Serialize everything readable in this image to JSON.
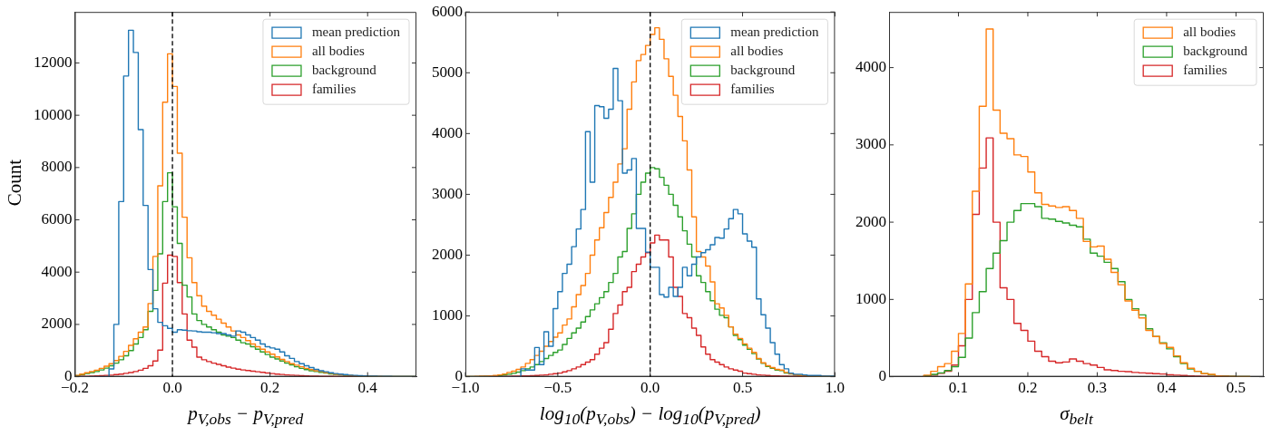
{
  "chart_data": [
    {
      "type": "histogram",
      "xlabel": "p$_{V,obs}$ − p$_{V,pred}$",
      "ylabel": "Count",
      "legend": "top right",
      "xlim": [
        -0.2,
        0.5
      ],
      "ylim": [
        0,
        13950
      ],
      "xticks": [
        {
          "value": -0.2,
          "label": "−0.2"
        },
        {
          "value": 0,
          "label": "0.0"
        },
        {
          "value": 0.2,
          "label": "0.2"
        },
        {
          "value": 0.4,
          "label": "0.4"
        }
      ],
      "yticks": [
        0,
        2000,
        4000,
        6000,
        8000,
        10000,
        12000
      ],
      "ref_lines": [
        {
          "axis": "x",
          "value": 0,
          "color": "#000000",
          "line_style": "dashed"
        }
      ],
      "bins": [
        -0.2,
        -0.19,
        -0.18,
        -0.17,
        -0.16,
        -0.15,
        -0.14,
        -0.13,
        -0.12,
        -0.11,
        -0.1,
        -0.09,
        -0.08,
        -0.07,
        -0.06,
        -0.05,
        -0.04,
        -0.03,
        -0.02,
        -0.01,
        0,
        0.01,
        0.02,
        0.03,
        0.04,
        0.05,
        0.06,
        0.07,
        0.08,
        0.09,
        0.1,
        0.11,
        0.12,
        0.13,
        0.14,
        0.15,
        0.16,
        0.17,
        0.18,
        0.19,
        0.2,
        0.21,
        0.22,
        0.23,
        0.24,
        0.25,
        0.26,
        0.27,
        0.28,
        0.29,
        0.3,
        0.31,
        0.32,
        0.33,
        0.34,
        0.35,
        0.36,
        0.37,
        0.38,
        0.39,
        0.4,
        0.41,
        0.42,
        0.43,
        0.44,
        0.45,
        0.46,
        0.47,
        0.48,
        0.49,
        0.5
      ],
      "series": [
        {
          "name": "mean prediction",
          "color": "#1f77b4",
          "values": [
            0,
            0,
            0,
            0,
            0,
            0,
            0,
            300,
            2000,
            6700,
            11500,
            13250,
            12400,
            9450,
            6550,
            4100,
            2600,
            2080,
            1950,
            1850,
            1700,
            1800,
            1780,
            1760,
            1750,
            1720,
            1700,
            1700,
            1680,
            1650,
            1650,
            1600,
            1550,
            1750,
            1700,
            1600,
            1500,
            1400,
            1250,
            1150,
            1100,
            1050,
            950,
            800,
            700,
            580,
            500,
            420,
            350,
            280,
            230,
            190,
            150,
            120,
            100,
            80,
            60,
            50,
            40,
            30,
            25,
            20,
            15,
            12,
            10,
            8,
            6,
            5,
            4,
            3
          ]
        },
        {
          "name": "all bodies",
          "color": "#ff7f0e",
          "values": [
            50,
            100,
            150,
            200,
            250,
            320,
            400,
            500,
            620,
            780,
            970,
            1200,
            1450,
            1700,
            1900,
            2800,
            4600,
            7300,
            10500,
            12350,
            11100,
            8550,
            6100,
            4550,
            3600,
            3100,
            2700,
            2500,
            2350,
            2200,
            2050,
            1900,
            1750,
            1600,
            1500,
            1380,
            1250,
            1150,
            1050,
            950,
            860,
            760,
            660,
            580,
            500,
            440,
            380,
            320,
            270,
            230,
            200,
            160,
            130,
            100,
            80,
            60,
            45,
            35,
            25,
            20,
            15,
            12,
            10,
            8,
            6,
            5,
            4,
            3,
            2,
            1
          ]
        },
        {
          "name": "background",
          "color": "#2ca02c",
          "values": [
            40,
            80,
            120,
            160,
            200,
            260,
            330,
            420,
            520,
            650,
            800,
            1000,
            1250,
            1500,
            1800,
            2500,
            3300,
            4700,
            6700,
            7800,
            6500,
            5100,
            3500,
            3050,
            2400,
            2150,
            2000,
            1900,
            1800,
            1700,
            1600,
            1550,
            1500,
            1400,
            1300,
            1250,
            1150,
            1050,
            950,
            850,
            750,
            680,
            600,
            520,
            450,
            380,
            320,
            270,
            230,
            200,
            170,
            140,
            110,
            90,
            70,
            55,
            40,
            30,
            22,
            16,
            12,
            10,
            8,
            6,
            5,
            4,
            3,
            2,
            1,
            1
          ]
        },
        {
          "name": "families",
          "color": "#d62728",
          "values": [
            5,
            10,
            15,
            20,
            30,
            40,
            50,
            60,
            80,
            100,
            130,
            160,
            200,
            250,
            320,
            420,
            600,
            1020,
            3580,
            4650,
            4600,
            3600,
            2400,
            1400,
            1130,
            750,
            650,
            580,
            520,
            470,
            420,
            370,
            330,
            290,
            260,
            240,
            210,
            190,
            170,
            140,
            120,
            100,
            85,
            70,
            60,
            50,
            40,
            30,
            25,
            20,
            15,
            12,
            10,
            8,
            6,
            5,
            4,
            3,
            2,
            1,
            0,
            0,
            0,
            0,
            0,
            0,
            0,
            0,
            0,
            0
          ]
        }
      ]
    },
    {
      "type": "histogram",
      "xlabel": "log$_{10}$(p$_{V,obs}$) − log$_{10}$(p$_{V,pred}$)",
      "legend": "top right",
      "xlim": [
        -1,
        1
      ],
      "ylim": [
        0,
        6000
      ],
      "xticks": [
        {
          "value": -1,
          "label": "−1.0"
        },
        {
          "value": -0.5,
          "label": "−0.5"
        },
        {
          "value": 0,
          "label": "0.0"
        },
        {
          "value": 0.5,
          "label": "0.5"
        },
        {
          "value": 1,
          "label": "1.0"
        }
      ],
      "yticks": [
        0,
        1000,
        2000,
        3000,
        4000,
        5000,
        6000
      ],
      "ref_lines": [
        {
          "axis": "x",
          "value": 0,
          "color": "#000000",
          "line_style": "dashed"
        }
      ],
      "bins": [
        -1,
        -0.975,
        -0.95,
        -0.925,
        -0.9,
        -0.875,
        -0.85,
        -0.825,
        -0.8,
        -0.775,
        -0.75,
        -0.725,
        -0.7,
        -0.675,
        -0.65,
        -0.625,
        -0.6,
        -0.575,
        -0.55,
        -0.525,
        -0.5,
        -0.475,
        -0.45,
        -0.425,
        -0.4,
        -0.375,
        -0.35,
        -0.325,
        -0.3,
        -0.275,
        -0.25,
        -0.225,
        -0.2,
        -0.175,
        -0.15,
        -0.125,
        -0.1,
        -0.075,
        -0.05,
        -0.025,
        0,
        0.025,
        0.05,
        0.075,
        0.1,
        0.125,
        0.15,
        0.175,
        0.2,
        0.225,
        0.25,
        0.275,
        0.3,
        0.325,
        0.35,
        0.375,
        0.4,
        0.425,
        0.45,
        0.475,
        0.5,
        0.525,
        0.55,
        0.575,
        0.6,
        0.625,
        0.65,
        0.675,
        0.7,
        0.725,
        0.75,
        0.775,
        0.8,
        0.825,
        0.85,
        0.875,
        0.9,
        0.925,
        0.95,
        0.975,
        1
      ],
      "series": [
        {
          "name": "mean prediction",
          "color": "#1f77b4",
          "values": [
            0,
            0,
            0,
            0,
            0,
            0,
            0,
            0,
            0,
            0,
            0,
            0,
            130,
            110,
            110,
            480,
            200,
            740,
            500,
            1120,
            1400,
            1700,
            1850,
            2140,
            2430,
            2750,
            4030,
            3200,
            4460,
            4440,
            4250,
            4400,
            5070,
            4540,
            3350,
            3400,
            3590,
            2440,
            2440,
            2050,
            1800,
            1800,
            1350,
            1310,
            1470,
            1320,
            1470,
            1800,
            1660,
            1850,
            1970,
            2040,
            2090,
            2170,
            2290,
            2280,
            2430,
            2600,
            2750,
            2680,
            2350,
            2230,
            2130,
            1280,
            1020,
            800,
            560,
            370,
            200,
            130,
            60,
            40,
            40,
            30,
            20,
            20,
            20,
            10,
            10,
            10
          ]
        },
        {
          "name": "all bodies",
          "color": "#ff7f0e",
          "values": [
            2,
            3,
            5,
            8,
            10,
            15,
            20,
            30,
            45,
            70,
            90,
            120,
            160,
            220,
            280,
            350,
            420,
            500,
            580,
            650,
            720,
            850,
            950,
            1150,
            1350,
            1500,
            1700,
            2000,
            2250,
            2450,
            2700,
            2950,
            3200,
            3500,
            3750,
            4400,
            4850,
            5200,
            5300,
            5450,
            5630,
            5740,
            5550,
            5230,
            4940,
            4630,
            4280,
            3880,
            3400,
            2630,
            2060,
            1970,
            1820,
            1560,
            1200,
            1130,
            1010,
            820,
            700,
            630,
            540,
            470,
            400,
            300,
            230,
            180,
            150,
            120,
            110,
            70,
            50,
            30,
            20,
            15,
            10,
            8,
            6,
            4,
            3,
            2
          ]
        },
        {
          "name": "background",
          "color": "#2ca02c",
          "values": [
            2,
            3,
            4,
            6,
            8,
            10,
            15,
            20,
            30,
            40,
            55,
            75,
            100,
            130,
            160,
            200,
            250,
            300,
            350,
            400,
            440,
            530,
            630,
            720,
            800,
            900,
            990,
            1100,
            1200,
            1300,
            1400,
            1550,
            1700,
            1970,
            2060,
            2440,
            2680,
            3000,
            3200,
            3350,
            3440,
            3420,
            3280,
            3150,
            3000,
            2820,
            2630,
            2400,
            2180,
            1970,
            1660,
            1550,
            1400,
            1250,
            1110,
            1010,
            970,
            820,
            680,
            610,
            520,
            450,
            380,
            290,
            220,
            170,
            140,
            110,
            100,
            60,
            45,
            30,
            20,
            15,
            10,
            8,
            6,
            4,
            3,
            2
          ]
        },
        {
          "name": "families",
          "color": "#d62728",
          "values": [
            0,
            0,
            0,
            0,
            0,
            2,
            3,
            4,
            5,
            6,
            8,
            10,
            12,
            15,
            18,
            20,
            25,
            30,
            40,
            50,
            60,
            80,
            100,
            130,
            160,
            200,
            240,
            280,
            370,
            470,
            560,
            780,
            1040,
            1180,
            1400,
            1470,
            1730,
            1850,
            1970,
            2040,
            2200,
            2330,
            2250,
            2250,
            1970,
            1470,
            1320,
            1040,
            970,
            800,
            680,
            490,
            370,
            280,
            240,
            200,
            160,
            130,
            110,
            90,
            60,
            50,
            40,
            30,
            25,
            20,
            15,
            12,
            10,
            8,
            6,
            5,
            4,
            3,
            2,
            2,
            1,
            1,
            0,
            0
          ]
        }
      ]
    },
    {
      "type": "histogram",
      "xlabel": "σ$_{belt}$",
      "legend": "top right",
      "xlim": [
        0,
        0.54
      ],
      "ylim": [
        0,
        4720
      ],
      "xticks": [
        0.1,
        0.2,
        0.3,
        0.4,
        0.5
      ],
      "yticks": [
        0,
        1000,
        2000,
        3000,
        4000
      ],
      "bins": [
        0.05,
        0.06,
        0.07,
        0.08,
        0.09,
        0.1,
        0.11,
        0.12,
        0.13,
        0.14,
        0.15,
        0.16,
        0.17,
        0.18,
        0.19,
        0.2,
        0.21,
        0.22,
        0.23,
        0.24,
        0.25,
        0.26,
        0.27,
        0.28,
        0.29,
        0.3,
        0.31,
        0.32,
        0.33,
        0.34,
        0.35,
        0.36,
        0.37,
        0.38,
        0.39,
        0.4,
        0.41,
        0.42,
        0.43,
        0.44,
        0.45,
        0.46,
        0.47,
        0.48,
        0.49,
        0.5,
        0.51,
        0.52
      ],
      "series": [
        {
          "name": "all bodies",
          "color": "#ff7f0e",
          "values": [
            20,
            70,
            130,
            170,
            330,
            560,
            1200,
            2400,
            3500,
            4500,
            3450,
            3150,
            3080,
            2870,
            2850,
            2650,
            2380,
            2230,
            2210,
            2190,
            2200,
            2150,
            2050,
            1750,
            1680,
            1690,
            1520,
            1350,
            1190,
            980,
            860,
            760,
            600,
            520,
            430,
            380,
            270,
            180,
            110,
            70,
            40,
            30,
            10,
            8,
            5,
            3,
            2
          ]
        },
        {
          "name": "background",
          "color": "#2ca02c",
          "values": [
            10,
            30,
            50,
            80,
            130,
            250,
            500,
            830,
            1100,
            1400,
            1600,
            1760,
            2000,
            2150,
            2240,
            2240,
            2200,
            2050,
            2040,
            2010,
            1990,
            1960,
            1940,
            1780,
            1600,
            1560,
            1480,
            1400,
            1230,
            1000,
            880,
            800,
            620,
            520,
            440,
            360,
            260,
            170,
            100,
            70,
            40,
            25,
            10,
            8,
            5,
            3,
            2
          ]
        },
        {
          "name": "families",
          "color": "#d62728",
          "values": [
            5,
            20,
            45,
            70,
            150,
            400,
            1000,
            2100,
            2700,
            3090,
            2000,
            1150,
            1000,
            690,
            600,
            460,
            330,
            260,
            200,
            180,
            190,
            230,
            200,
            170,
            150,
            120,
            90,
            80,
            70,
            65,
            55,
            50,
            45,
            40,
            35,
            25,
            20,
            15,
            10,
            8,
            5,
            3,
            2,
            1,
            0,
            0,
            0
          ]
        }
      ]
    }
  ]
}
